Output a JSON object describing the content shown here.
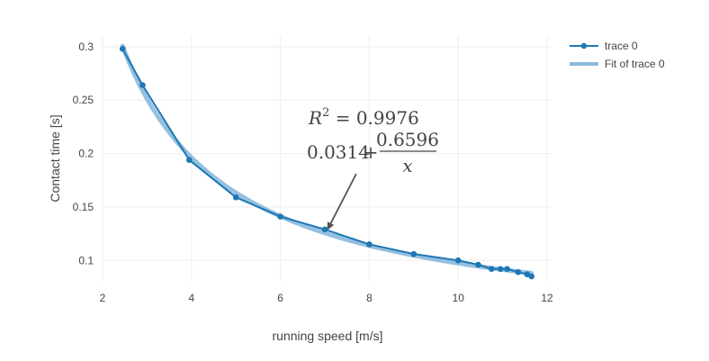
{
  "chart_data": {
    "type": "line",
    "xlabel": "running speed [m/s]",
    "ylabel": "Contact time [s]",
    "xlim": [
      2,
      12.1
    ],
    "ylim": [
      0.08,
      0.31
    ],
    "x_ticks": [
      "2",
      "4",
      "6",
      "8",
      "10",
      "12"
    ],
    "y_ticks": [
      "0.1",
      "0.15",
      "0.2",
      "0.25",
      "0.3"
    ],
    "grid": true,
    "legend_position": "top-right",
    "series": [
      {
        "name": "trace 0",
        "color": "#1f77b4",
        "mode": "lines+markers",
        "x": [
          2.45,
          2.9,
          3.95,
          5.0,
          6.0,
          7.0,
          8.0,
          9.0,
          10.0,
          10.45,
          10.75,
          10.95,
          11.1,
          11.35,
          11.55,
          11.65
        ],
        "y": [
          0.298,
          0.264,
          0.194,
          0.159,
          0.141,
          0.129,
          0.115,
          0.106,
          0.1,
          0.096,
          0.092,
          0.092,
          0.092,
          0.089,
          0.087,
          0.085
        ]
      },
      {
        "name": "Fit of trace 0",
        "color": "#8ab9dc",
        "mode": "lines",
        "fit": {
          "a": 0.0314,
          "b": 0.6596,
          "form": "a + b/x"
        }
      }
    ],
    "annotation": {
      "r2_label": "R",
      "r2_exp": "2",
      "r2_value": " = 0.9976",
      "formula_const": "0.0314",
      "formula_plus": "+",
      "formula_numerator": "0.6596",
      "formula_denominator": "x",
      "arrow_target": {
        "x": 7.05,
        "y": 0.128
      }
    }
  }
}
